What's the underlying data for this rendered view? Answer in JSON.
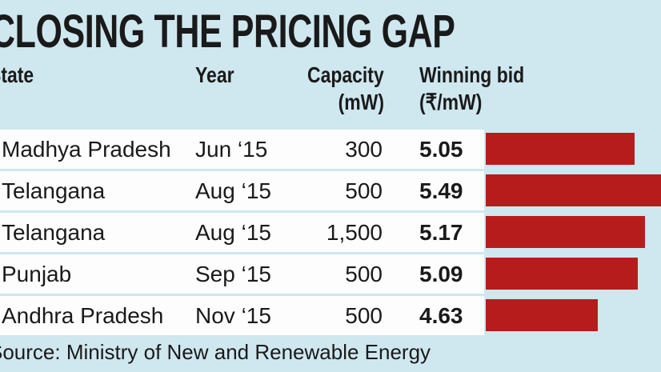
{
  "chart_data": {
    "type": "table",
    "title": "CLOSING THE PRICING GAP",
    "columns": [
      "State",
      "Year",
      "Capacity (mW)",
      "Winning bid (₹/mW)"
    ],
    "headers": {
      "state": "State",
      "year": "Year",
      "capacity": "Capacity",
      "capacity_unit": "(mW)",
      "bid": "Winning bid",
      "bid_unit": "(₹/mW)"
    },
    "rows": [
      {
        "state": "Madhya Pradesh",
        "year": "Jun ‘15",
        "capacity": "300",
        "bid": "5.05"
      },
      {
        "state": "Telangana",
        "year": "Aug ‘15",
        "capacity": "500",
        "bid": "5.49"
      },
      {
        "state": "Telangana",
        "year": "Aug ‘15",
        "capacity": "1,500",
        "bid": "5.17"
      },
      {
        "state": "Punjab",
        "year": "Sep ‘15",
        "capacity": "500",
        "bid": "5.09"
      },
      {
        "state": "Andhra Pradesh",
        "year": "Nov ‘15",
        "capacity": "500",
        "bid": "4.63"
      }
    ],
    "bar_values": [
      5.05,
      5.49,
      5.17,
      5.09,
      4.63
    ],
    "bar_color": "#b71c1c",
    "source": "Source: Ministry of New and Renewable Energy"
  }
}
